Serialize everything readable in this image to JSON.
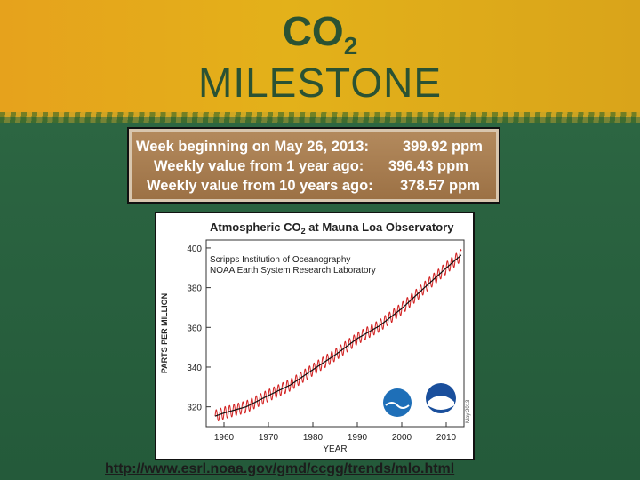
{
  "slide": {
    "title_co": "CO",
    "title_sub": "2",
    "title_main": "MILESTONE",
    "url": "http://www.esrl.noaa.gov/gmd/ccgg/trends/mlo.html"
  },
  "info_box": {
    "rows": [
      {
        "label": "Week beginning on May 26, 2013:",
        "value": "399.92 ppm"
      },
      {
        "label": "Weekly value from 1 year ago:",
        "value": "396.43 ppm"
      },
      {
        "label": "Weekly value from 10 years ago:",
        "value": "378.57 ppm"
      }
    ]
  },
  "chart_data": {
    "type": "line",
    "title_prefix": "Atmospheric CO",
    "title_sub": "2",
    "title_suffix": " at Mauna Loa Observatory",
    "annotation_lines": [
      "Scripps Institution of Oceanography",
      "NOAA Earth System Research Laboratory"
    ],
    "xlabel": "YEAR",
    "ylabel": "PARTS PER MILLION",
    "xlim": [
      1956,
      2014
    ],
    "ylim": [
      310,
      404
    ],
    "xticks": [
      1960,
      1970,
      1980,
      1990,
      2000,
      2010
    ],
    "yticks": [
      320,
      340,
      360,
      380,
      400
    ],
    "side_note": "May 2013",
    "trend_points": [
      [
        1958,
        315.3
      ],
      [
        1960,
        316.9
      ],
      [
        1965,
        320.0
      ],
      [
        1970,
        325.7
      ],
      [
        1975,
        331.1
      ],
      [
        1980,
        338.7
      ],
      [
        1985,
        346.1
      ],
      [
        1990,
        354.4
      ],
      [
        1995,
        360.8
      ],
      [
        2000,
        369.5
      ],
      [
        2005,
        379.8
      ],
      [
        2010,
        389.9
      ],
      [
        2013.4,
        396.5
      ]
    ],
    "seasonal_amplitude_ppm": 3.0,
    "series_colors": {
      "monthly": "#d22020",
      "trend": "#111111"
    },
    "logo_colors": {
      "scripps": "#1e6fb8",
      "noaa": "#1a4f9c"
    }
  }
}
